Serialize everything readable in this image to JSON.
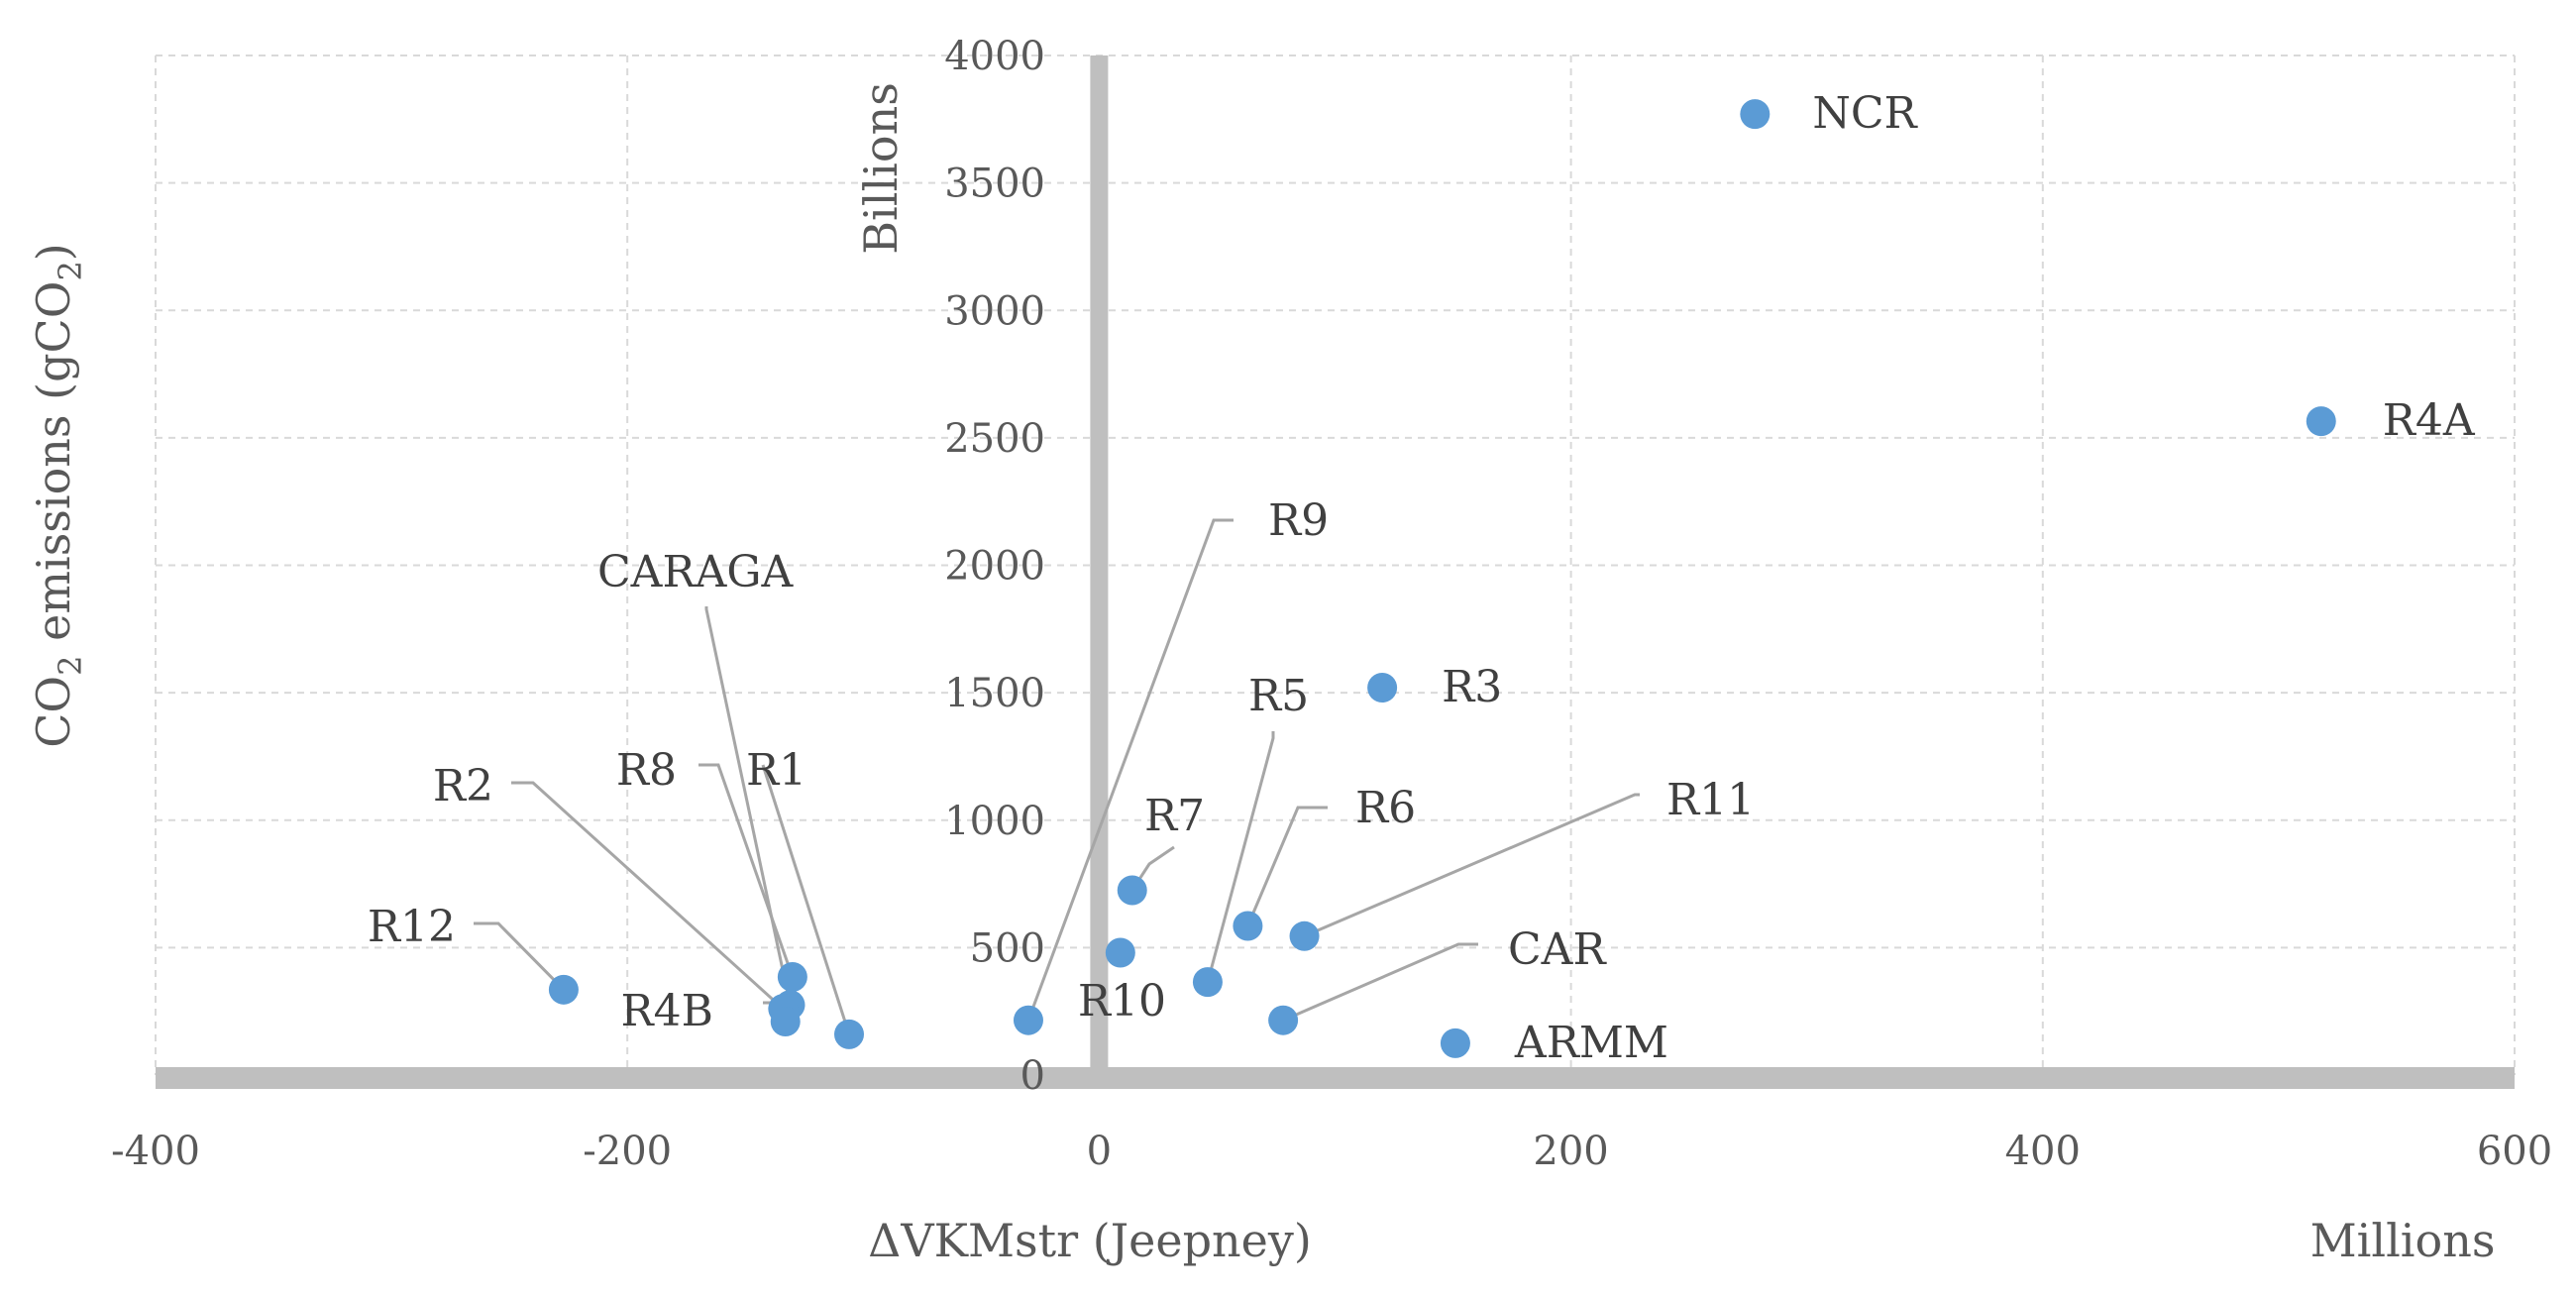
{
  "chart_data": {
    "type": "scatter",
    "title": "",
    "xlabel": "ΔVKMstr (Jeepney)",
    "x_unit_label": "Millions",
    "ylabel_pre": "CO",
    "ylabel_sub": "2",
    "ylabel_mid": " emissions (gCO",
    "ylabel_sub2": "2",
    "ylabel_post": ")",
    "y_unit_label": "Billions",
    "xlim": [
      -400,
      600
    ],
    "ylim": [
      0,
      4000
    ],
    "x_ticks": [
      -400,
      -200,
      0,
      200,
      400,
      600
    ],
    "y_ticks": [
      0,
      500,
      1000,
      1500,
      2000,
      2500,
      3000,
      3500,
      4000
    ],
    "marker_color": "#5b9bd5",
    "points": [
      {
        "label": "NCR",
        "x": 278,
        "y": 3770
      },
      {
        "label": "R4A",
        "x": 518,
        "y": 2565
      },
      {
        "label": "R3",
        "x": 120,
        "y": 1520
      },
      {
        "label": "R7",
        "x": 14,
        "y": 725
      },
      {
        "label": "R6",
        "x": 63,
        "y": 585
      },
      {
        "label": "R11",
        "x": 87,
        "y": 545
      },
      {
        "label": "R10",
        "x": 9,
        "y": 480
      },
      {
        "label": "R5",
        "x": 46,
        "y": 365
      },
      {
        "label": "CAR",
        "x": 78,
        "y": 215
      },
      {
        "label": "ARMM",
        "x": 151,
        "y": 125
      },
      {
        "label": "R9",
        "x": -30,
        "y": 215
      },
      {
        "label": "R12",
        "x": -227,
        "y": 335
      },
      {
        "label": "R8",
        "x": -130,
        "y": 385
      },
      {
        "label": "R1",
        "x": -106,
        "y": 160
      },
      {
        "label": "CARAGA",
        "x": -131,
        "y": 275
      },
      {
        "label": "R2",
        "x": -134,
        "y": 260
      },
      {
        "label": "R4B",
        "x": -133,
        "y": 210
      }
    ]
  }
}
